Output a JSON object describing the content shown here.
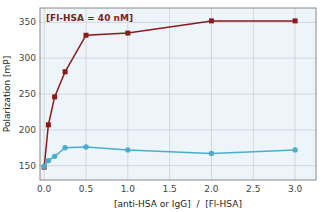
{
  "chart_data": {
    "type": "line",
    "x": [
      0.0,
      0.05,
      0.125,
      0.25,
      0.5,
      1.0,
      2.0,
      3.0
    ],
    "series": [
      {
        "color": "#8B1A1A",
        "marker": "square",
        "values": [
          148,
          207,
          246,
          281,
          332,
          335,
          352,
          352
        ]
      },
      {
        "color": "#4AADCE",
        "marker": "circle",
        "values": [
          149,
          157,
          163,
          175,
          176,
          172,
          167,
          172
        ]
      }
    ],
    "annotations": [
      {
        "text": "[Fl-HSA = 40 nM]",
        "color": "#8B1A1A"
      }
    ],
    "x_label": "[anti-HSA or IgG]  /  [Fl-HSA]",
    "y_label": "Polarization [mP]",
    "xlim": [
      -0.05,
      3.25
    ],
    "ylim": [
      130,
      370
    ],
    "xticks": [
      {
        "value": 0.0,
        "label": "0.0"
      },
      0.5,
      {
        "value": 1.0,
        "label": "1.0"
      },
      1.5,
      {
        "value": 2.0,
        "label": "2.0"
      },
      2.5,
      {
        "value": 3.0,
        "label": "3.0"
      }
    ],
    "yticks": [
      150,
      200,
      250,
      300,
      350
    ],
    "grid": true
  }
}
